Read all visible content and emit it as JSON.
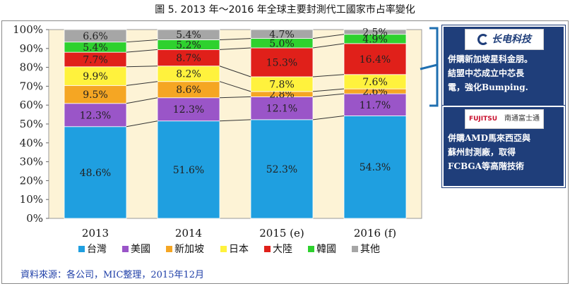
{
  "title": "圖 5. 2013 年～2016 年全球主要封測代工國家市占率變化",
  "source": "資料來源：各公司，MIC整理，2015年12月",
  "colors": {
    "台灣": "#1f9fe0",
    "美國": "#9a55c8",
    "新加坡": "#f5a623",
    "日本": "#fff23d",
    "大陸": "#e0201a",
    "韓國": "#2ed12e",
    "其他": "#a6a6a6",
    "plot_bg": "#fdf3d6",
    "callout_bg": "#1f3e7a"
  },
  "chart_data": {
    "type": "bar",
    "stacked": true,
    "categories": [
      "2013",
      "2014",
      "2015 (e)",
      "2016 (f)"
    ],
    "ylim": [
      0,
      100
    ],
    "yticks": [
      "0%",
      "10%",
      "20%",
      "30%",
      "40%",
      "50%",
      "60%",
      "70%",
      "80%",
      "90%",
      "100%"
    ],
    "legend_position": "bottom",
    "series": [
      {
        "name": "台灣",
        "values": [
          48.6,
          51.6,
          52.3,
          54.3
        ],
        "labels": [
          "48.6%",
          "51.6%",
          "52.3%",
          "54.3%"
        ]
      },
      {
        "name": "美國",
        "values": [
          12.3,
          12.3,
          12.1,
          11.7
        ],
        "labels": [
          "12.3%",
          "12.3%",
          "12.1%",
          "11.7%"
        ]
      },
      {
        "name": "新加坡",
        "values": [
          9.5,
          8.6,
          2.8,
          2.6
        ],
        "labels": [
          "9.5%",
          "8.6%",
          "2.8%",
          "2.6%"
        ]
      },
      {
        "name": "日本",
        "values": [
          9.9,
          8.2,
          7.8,
          7.6
        ],
        "labels": [
          "9.9%",
          "8.2%",
          "7.8%",
          "7.6%"
        ]
      },
      {
        "name": "大陸",
        "values": [
          7.7,
          8.7,
          15.3,
          16.4
        ],
        "labels": [
          "7.7%",
          "8.7%",
          "15.3%",
          "16.4%"
        ]
      },
      {
        "name": "韓國",
        "values": [
          5.4,
          5.2,
          5.0,
          4.9
        ],
        "labels": [
          "5.4%",
          "5.2%",
          "5.0%",
          "4.9%"
        ]
      },
      {
        "name": "其他",
        "values": [
          6.6,
          5.4,
          4.7,
          2.5
        ],
        "labels": [
          "6.6%",
          "5.4%",
          "4.7%",
          "2.5%"
        ]
      }
    ]
  },
  "callouts": [
    {
      "logo_text": "长电科技",
      "text_lines": [
        "併購新加坡星科金朋。",
        "結盟中芯成立中芯長",
        "電，強化Bumping."
      ]
    },
    {
      "logo_text": "FUJITSU",
      "logo_text2": "南通富士通",
      "text_lines": [
        "併購AMD馬來西亞與",
        "蘇州封測廠，取得",
        "FCBGA等高階技術"
      ]
    }
  ]
}
